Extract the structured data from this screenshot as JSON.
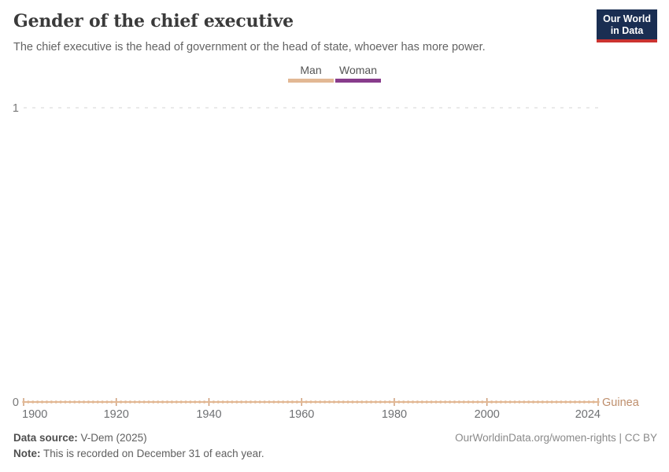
{
  "header": {
    "title": "Gender of the chief executive",
    "subtitle": "The chief executive is the head of government or the head of state, whoever has more power.",
    "logo": {
      "line1": "Our World",
      "line2": "in Data",
      "bg_color": "#1a2e52",
      "accent_color": "#cb3330"
    }
  },
  "legend": {
    "items": [
      {
        "label": "Man",
        "color": "#E2B894"
      },
      {
        "label": "Woman",
        "color": "#883C8C"
      }
    ]
  },
  "colors": {
    "man": "#E2B894",
    "woman": "#883C8C",
    "entity_label": "#BE8E6C",
    "tick_mark": "#C79067",
    "gridline": "#D6D6D6",
    "axis_label": "#6e7073",
    "y_label": "#787878"
  },
  "entity_label": {
    "text": "Guinea",
    "color": "#BE8E6C"
  },
  "chart_data": {
    "type": "line",
    "title": "Gender of the chief executive",
    "subtitle": "The chief executive is the head of government or the head of state, whoever has more power.",
    "entities": [
      "Guinea"
    ],
    "x": {
      "min": 1900,
      "max": 2024,
      "step_years": 1,
      "tick_labels": [
        1900,
        1920,
        1940,
        1960,
        1980,
        2000,
        2024
      ]
    },
    "y": {
      "min": 0,
      "max": 1,
      "ticks": [
        0,
        1
      ],
      "gridline_dashed_at": 1
    },
    "value_meaning": {
      "0": "Man",
      "1": "Woman"
    },
    "legend_entries": [
      "Man",
      "Woman"
    ],
    "legend_position": "top-center",
    "grid": "dashed horizontal gridline at y=1 only",
    "series": [
      {
        "name": "Guinea",
        "category_shown": "Man",
        "color": "#E2B894",
        "year_start": 1900,
        "year_end": 2024,
        "constant_value": 0,
        "marker": "one dot per year",
        "points_note": "Every year from 1900 through 2024 inclusive has value 0 (Man)"
      }
    ]
  },
  "footer": {
    "source_label": "Data source:",
    "source_value": "V-Dem (2025)",
    "note_label": "Note:",
    "note_value": "This is recorded on December 31 of each year.",
    "credit": "OurWorldinData.org/women-rights | CC BY"
  }
}
